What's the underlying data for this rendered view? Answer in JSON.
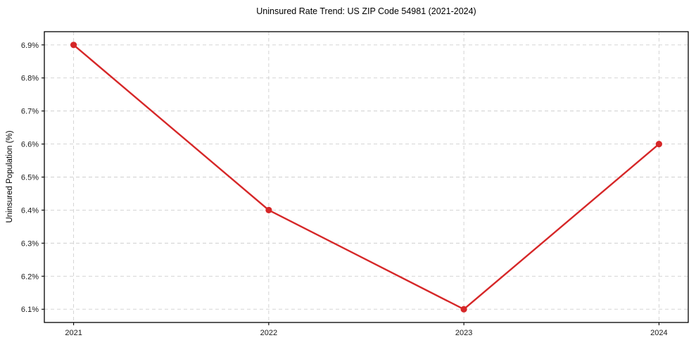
{
  "chart_data": {
    "type": "line",
    "title": "Uninsured Rate Trend: US ZIP Code 54981 (2021-2024)",
    "xlabel": "",
    "ylabel": "Uninsured Population (%)",
    "x": [
      2021,
      2022,
      2023,
      2024
    ],
    "series": [
      {
        "name": "Uninsured rate",
        "values": [
          6.9,
          6.4,
          6.1,
          6.6
        ]
      }
    ],
    "x_ticks": [
      2021,
      2022,
      2023,
      2024
    ],
    "x_tick_labels": [
      "2021",
      "2022",
      "2023",
      "2024"
    ],
    "y_ticks": [
      6.1,
      6.2,
      6.3,
      6.4,
      6.5,
      6.6,
      6.7,
      6.8,
      6.9
    ],
    "y_tick_labels": [
      "6.1%",
      "6.2%",
      "6.3%",
      "6.4%",
      "6.5%",
      "6.6%",
      "6.7%",
      "6.8%",
      "6.9%"
    ],
    "xlim": [
      2020.85,
      2024.15
    ],
    "ylim": [
      6.06,
      6.94
    ],
    "grid": "dashed, both axes",
    "legend": "none",
    "colors": {
      "line": "#d62728",
      "marker": "#d62728",
      "grid": "#cfcfcf",
      "spine": "#000000",
      "background": "#ffffff",
      "text": "#000000"
    }
  }
}
